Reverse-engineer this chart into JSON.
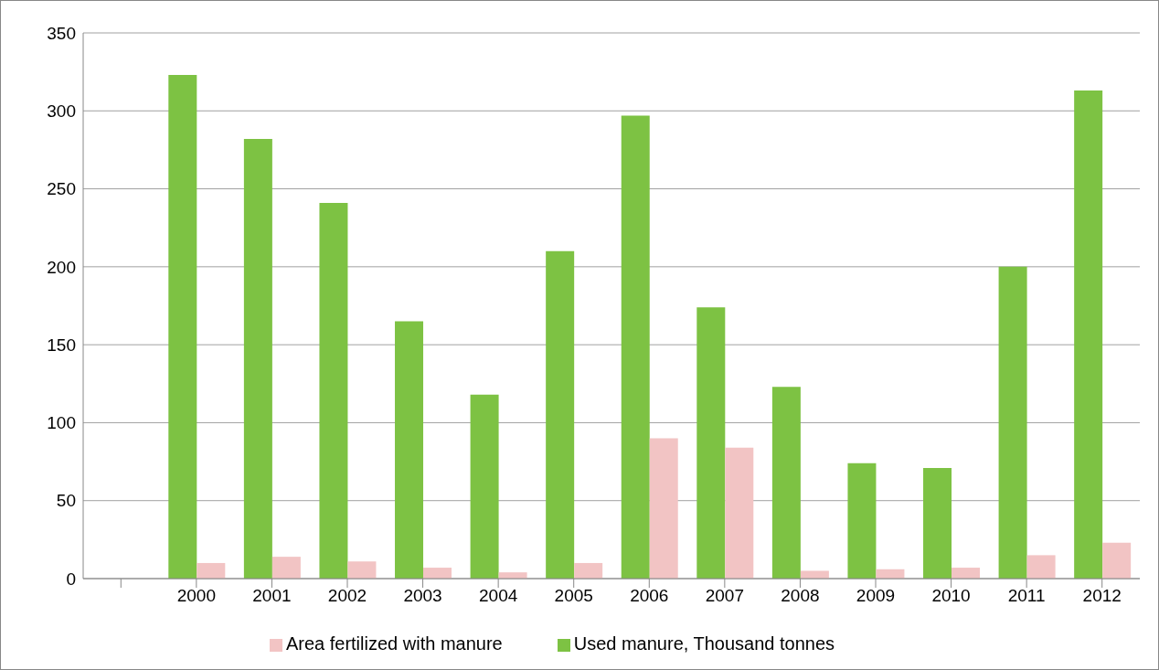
{
  "chart_data": {
    "type": "bar",
    "categories": [
      null,
      "2000",
      "2001",
      "2002",
      "2003",
      "2004",
      "2005",
      "2006",
      "2007",
      "2008",
      "2009",
      "2010",
      "2011",
      "2012"
    ],
    "series": [
      {
        "name": "Used manure, Thousand tonnes",
        "color": "#7dc243",
        "values": [
          null,
          323,
          282,
          241,
          165,
          118,
          210,
          297,
          174,
          123,
          74,
          71,
          200,
          313
        ]
      },
      {
        "name": "Area fertilized with manure",
        "color": "#f2c4c4",
        "values": [
          null,
          10,
          14,
          11,
          7,
          4,
          10,
          90,
          84,
          5,
          6,
          7,
          15,
          23
        ]
      }
    ],
    "ylim": [
      0,
      350
    ],
    "yticks": [
      0,
      50,
      100,
      150,
      200,
      250,
      300,
      350
    ],
    "grid": "y",
    "legend": "bottom"
  }
}
